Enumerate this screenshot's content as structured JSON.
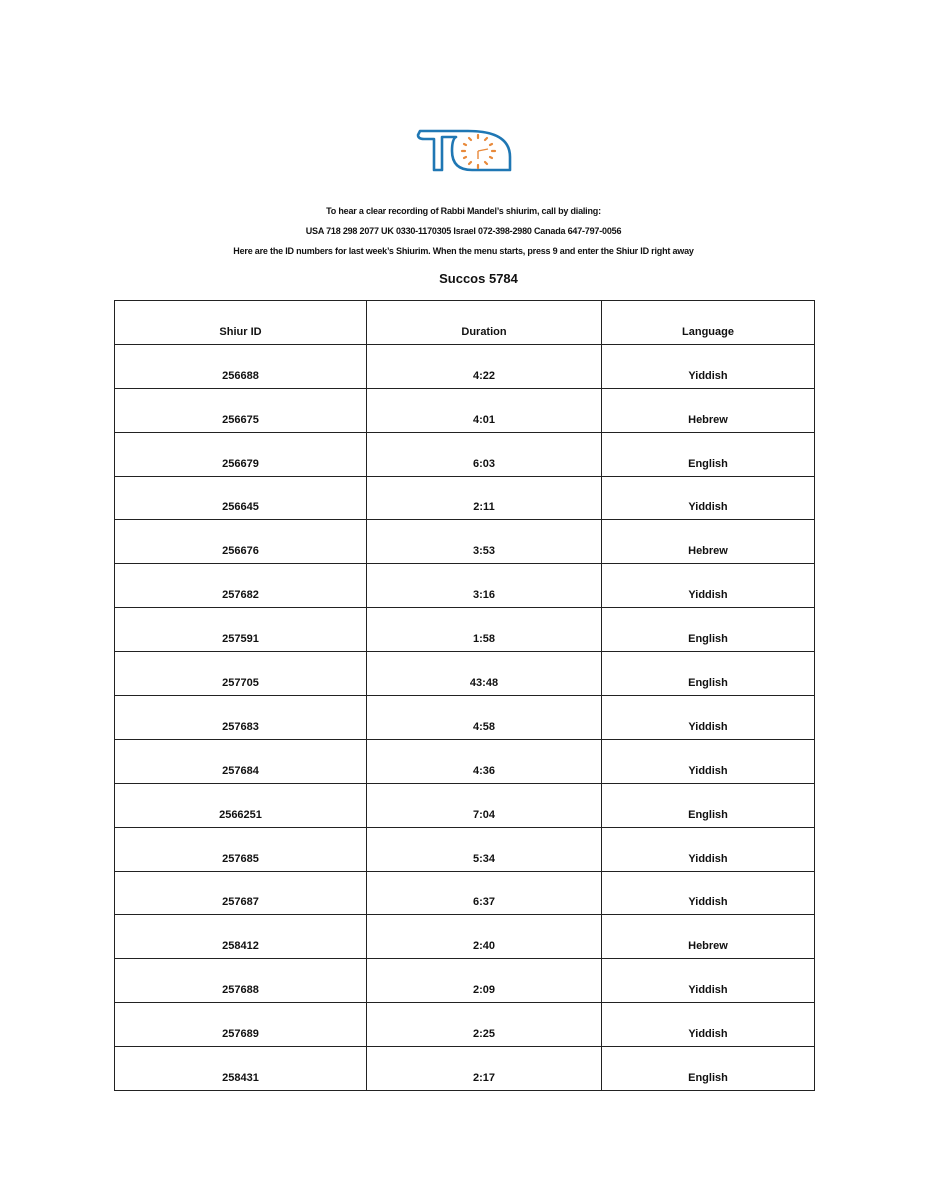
{
  "logo": {
    "text": "TC",
    "colors": {
      "outline": "#1f77b4",
      "clock": "#e8893a"
    }
  },
  "header": {
    "line1": "To hear a clear recording of Rabbi Mandel’s shiurim, call by dialing:",
    "line2": "USA 718 298 2077  UK 0330-1170305 Israel 072-398-2980 Canada 647-797-0056",
    "line3": "Here are the ID numbers for last week’s Shiurim. When the menu starts, press 9 and enter the Shiur ID right away",
    "title": "Succos 5784"
  },
  "table": {
    "columns": [
      "Shiur ID",
      "Duration",
      "Language"
    ],
    "rows": [
      [
        "256688",
        "4:22",
        "Yiddish"
      ],
      [
        "256675",
        "4:01",
        "Hebrew"
      ],
      [
        "256679",
        "6:03",
        "English"
      ],
      [
        "256645",
        "2:11",
        "Yiddish"
      ],
      [
        "256676",
        "3:53",
        "Hebrew"
      ],
      [
        "257682",
        "3:16",
        "Yiddish"
      ],
      [
        "257591",
        "1:58",
        "English"
      ],
      [
        "257705",
        "43:48",
        "English"
      ],
      [
        "257683",
        "4:58",
        "Yiddish"
      ],
      [
        "257684",
        "4:36",
        "Yiddish"
      ],
      [
        "2566251",
        "7:04",
        "English"
      ],
      [
        "257685",
        "5:34",
        "Yiddish"
      ],
      [
        "257687",
        "6:37",
        "Yiddish"
      ],
      [
        "258412",
        "2:40",
        "Hebrew"
      ],
      [
        "257688",
        "2:09",
        "Yiddish"
      ],
      [
        "257689",
        "2:25",
        "Yiddish"
      ],
      [
        "258431",
        "2:17",
        "English"
      ]
    ]
  }
}
